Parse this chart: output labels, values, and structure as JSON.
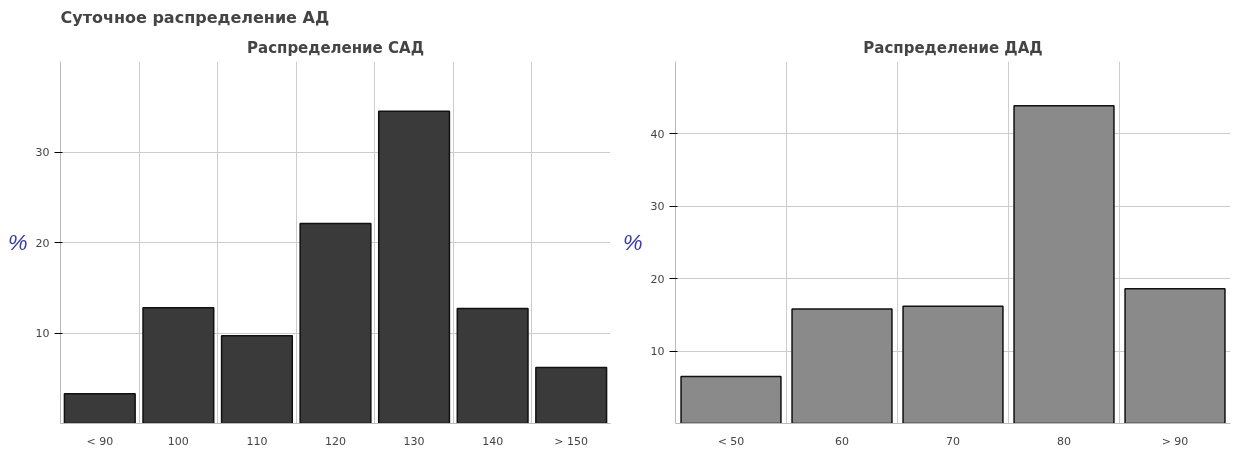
{
  "chart_data": [
    {
      "type": "bar",
      "title": "Распределение САД",
      "ylabel": "%",
      "annotations": [
        "Суточное распределение АД"
      ],
      "categories": [
        "< 90",
        "100",
        "110",
        "120",
        "130",
        "140",
        "> 150"
      ],
      "values": [
        3.3,
        12.8,
        9.7,
        22.1,
        34.5,
        12.7,
        6.2
      ],
      "color": "#3a3a3a",
      "ylim": [
        0,
        40
      ],
      "yticks": [
        10,
        20,
        30
      ],
      "grid": true
    },
    {
      "type": "bar",
      "title": "Распределение ДАД",
      "ylabel": "%",
      "categories": [
        "< 50",
        "60",
        "70",
        "80",
        "> 90"
      ],
      "values": [
        6.5,
        15.8,
        16.2,
        43.9,
        18.6
      ],
      "color": "#8a8a8a",
      "ylim": [
        0,
        50
      ],
      "yticks": [
        10,
        20,
        30,
        40
      ],
      "grid": true
    }
  ]
}
